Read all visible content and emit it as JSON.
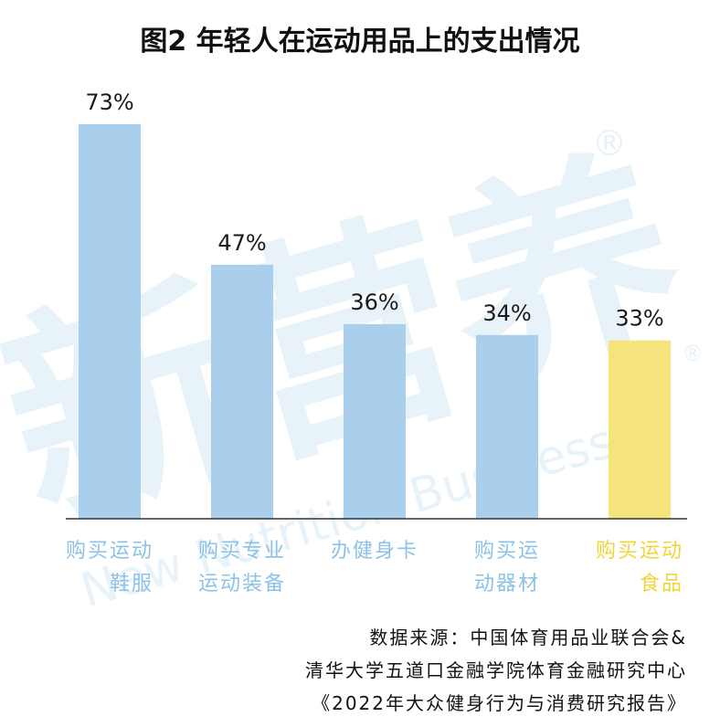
{
  "chart_data": {
    "type": "bar",
    "title": "图2 年轻人在运动用品上的支出情况",
    "categories": [
      [
        "购买运动",
        "鞋服"
      ],
      [
        "购买专业",
        "运动装备"
      ],
      [
        "办健身卡"
      ],
      [
        "购买运",
        "动器材"
      ],
      [
        "购买运动",
        "食品"
      ]
    ],
    "values": [
      73,
      47,
      36,
      34,
      33
    ],
    "value_labels": [
      "73%",
      "47%",
      "36%",
      "34%",
      "33%"
    ],
    "unit": "%",
    "ylim": [
      0,
      80
    ],
    "grid": false,
    "legend": "none",
    "colors": {
      "bar": "#a9cfec",
      "highlight_bar": "#f5e47c",
      "category_text": "#8cc2e6",
      "highlight_text": "#f0d43c",
      "axis": "#333333"
    },
    "highlight_index": 4
  },
  "source": {
    "line1": "数据来源：中国体育用品业联合会&",
    "line2": "清华大学五道口金融学院体育金融研究中心",
    "line3": "《2022年大众健身行为与消费研究报告》"
  },
  "watermark": {
    "text_cn": "新营养",
    "text_en": "New Nutrition Business",
    "mark": "®"
  }
}
